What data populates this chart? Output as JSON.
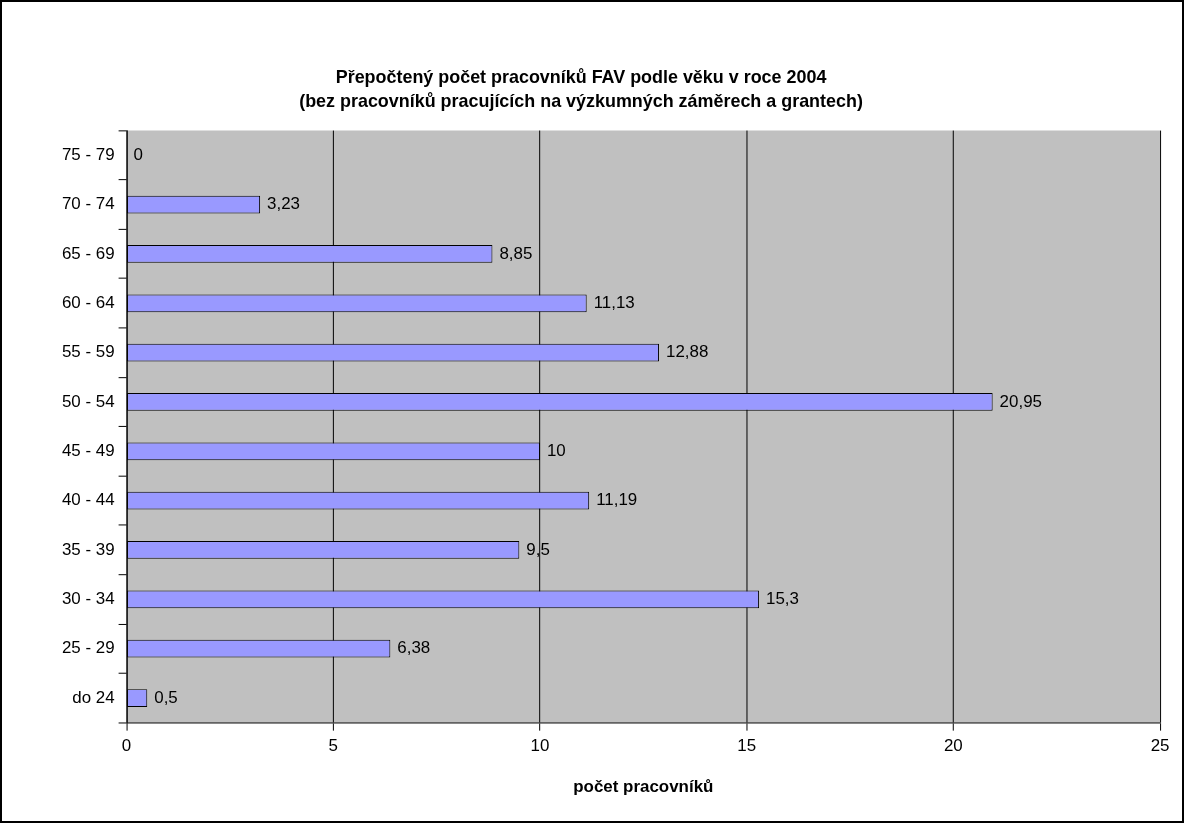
{
  "chart_data": {
    "type": "bar",
    "orientation": "horizontal",
    "title": "Přepočtený počet pracovníků FAV podle věku v roce 2004",
    "subtitle": "(bez pracovníků pracujících na výzkumných záměrech a grantech)",
    "xlabel": "počet pracovníků",
    "categories": [
      "75 - 79",
      "70 - 74",
      "65 - 69",
      "60 - 64",
      "55 - 59",
      "50 - 54",
      "45 - 49",
      "40 - 44",
      "35 - 39",
      "30 - 34",
      "25 - 29",
      "do 24"
    ],
    "values": [
      0,
      3.23,
      8.85,
      11.13,
      12.88,
      20.95,
      10,
      11.19,
      9.5,
      15.3,
      6.38,
      0.5
    ],
    "value_labels": [
      "0",
      "3,23",
      "8,85",
      "11,13",
      "12,88",
      "20,95",
      "10",
      "11,19",
      "9,5",
      "15,3",
      "6,38",
      "0,5"
    ],
    "color": "#9999ff",
    "xlim": [
      0,
      25
    ],
    "xticks": [
      0,
      5,
      10,
      15,
      20,
      25
    ],
    "grid": "x",
    "legend": false
  }
}
